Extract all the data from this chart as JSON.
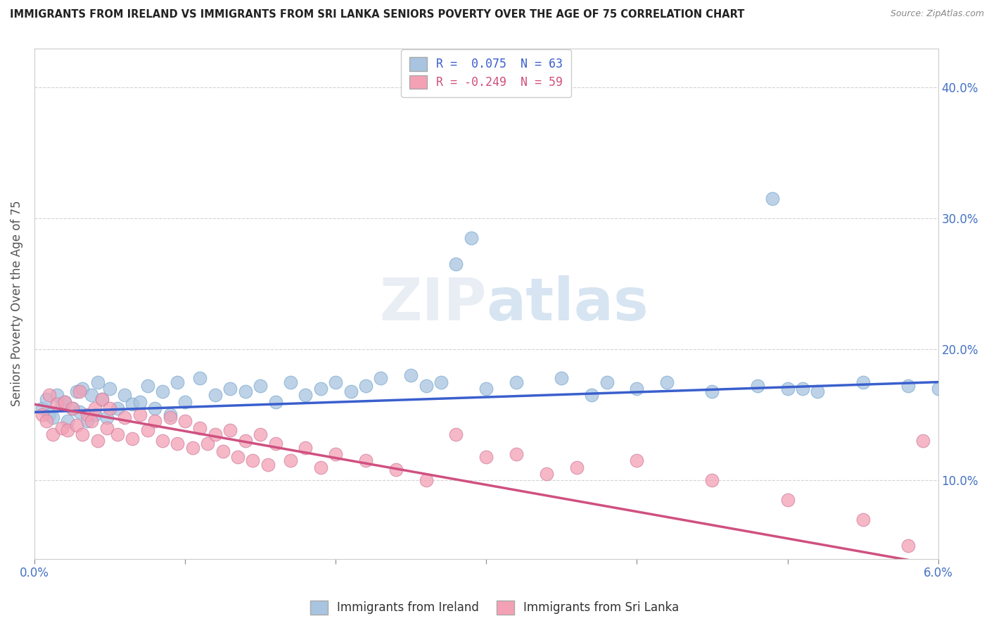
{
  "title": "IMMIGRANTS FROM IRELAND VS IMMIGRANTS FROM SRI LANKA SENIORS POVERTY OVER THE AGE OF 75 CORRELATION CHART",
  "source": "Source: ZipAtlas.com",
  "ylabel": "Seniors Poverty Over the Age of 75",
  "xlim": [
    0.0,
    6.0
  ],
  "ylim": [
    4.0,
    43.0
  ],
  "yticks": [
    10.0,
    20.0,
    30.0,
    40.0
  ],
  "ytick_labels": [
    "10.0%",
    "20.0%",
    "30.0%",
    "40.0%"
  ],
  "ireland_color": "#a8c4e0",
  "srilanka_color": "#f4a0b5",
  "ireland_line_color": "#3a5fcd",
  "srilanka_line_color": "#d05080",
  "background_color": "#ffffff",
  "ireland_scatter": [
    [
      0.05,
      15.5
    ],
    [
      0.08,
      16.2
    ],
    [
      0.1,
      15.0
    ],
    [
      0.12,
      14.8
    ],
    [
      0.15,
      16.5
    ],
    [
      0.18,
      15.8
    ],
    [
      0.2,
      16.0
    ],
    [
      0.22,
      14.5
    ],
    [
      0.25,
      15.5
    ],
    [
      0.28,
      16.8
    ],
    [
      0.3,
      15.2
    ],
    [
      0.32,
      17.0
    ],
    [
      0.35,
      14.5
    ],
    [
      0.38,
      16.5
    ],
    [
      0.4,
      15.0
    ],
    [
      0.42,
      17.5
    ],
    [
      0.45,
      16.2
    ],
    [
      0.48,
      14.8
    ],
    [
      0.5,
      17.0
    ],
    [
      0.55,
      15.5
    ],
    [
      0.6,
      16.5
    ],
    [
      0.65,
      15.8
    ],
    [
      0.7,
      16.0
    ],
    [
      0.75,
      17.2
    ],
    [
      0.8,
      15.5
    ],
    [
      0.85,
      16.8
    ],
    [
      0.9,
      15.0
    ],
    [
      0.95,
      17.5
    ],
    [
      1.0,
      16.0
    ],
    [
      1.1,
      17.8
    ],
    [
      1.2,
      16.5
    ],
    [
      1.3,
      17.0
    ],
    [
      1.4,
      16.8
    ],
    [
      1.5,
      17.2
    ],
    [
      1.6,
      16.0
    ],
    [
      1.7,
      17.5
    ],
    [
      1.8,
      16.5
    ],
    [
      1.9,
      17.0
    ],
    [
      2.0,
      17.5
    ],
    [
      2.1,
      16.8
    ],
    [
      2.2,
      17.2
    ],
    [
      2.5,
      18.0
    ],
    [
      2.7,
      17.5
    ],
    [
      2.8,
      26.5
    ],
    [
      2.9,
      28.5
    ],
    [
      3.0,
      17.0
    ],
    [
      3.2,
      17.5
    ],
    [
      3.5,
      17.8
    ],
    [
      3.7,
      16.5
    ],
    [
      4.0,
      17.0
    ],
    [
      4.2,
      17.5
    ],
    [
      4.5,
      16.8
    ],
    [
      4.8,
      17.2
    ],
    [
      4.9,
      31.5
    ],
    [
      5.0,
      17.0
    ],
    [
      5.2,
      16.8
    ],
    [
      5.5,
      17.5
    ],
    [
      5.8,
      17.2
    ],
    [
      6.0,
      17.0
    ],
    [
      2.3,
      17.8
    ],
    [
      2.6,
      17.2
    ],
    [
      3.8,
      17.5
    ],
    [
      5.1,
      17.0
    ]
  ],
  "srilanka_scatter": [
    [
      0.05,
      15.0
    ],
    [
      0.08,
      14.5
    ],
    [
      0.1,
      16.5
    ],
    [
      0.12,
      13.5
    ],
    [
      0.15,
      15.8
    ],
    [
      0.18,
      14.0
    ],
    [
      0.2,
      16.0
    ],
    [
      0.22,
      13.8
    ],
    [
      0.25,
      15.5
    ],
    [
      0.28,
      14.2
    ],
    [
      0.3,
      16.8
    ],
    [
      0.32,
      13.5
    ],
    [
      0.35,
      15.0
    ],
    [
      0.38,
      14.5
    ],
    [
      0.4,
      15.5
    ],
    [
      0.42,
      13.0
    ],
    [
      0.45,
      16.2
    ],
    [
      0.48,
      14.0
    ],
    [
      0.5,
      15.5
    ],
    [
      0.55,
      13.5
    ],
    [
      0.6,
      14.8
    ],
    [
      0.65,
      13.2
    ],
    [
      0.7,
      15.0
    ],
    [
      0.75,
      13.8
    ],
    [
      0.8,
      14.5
    ],
    [
      0.85,
      13.0
    ],
    [
      0.9,
      14.8
    ],
    [
      0.95,
      12.8
    ],
    [
      1.0,
      14.5
    ],
    [
      1.05,
      12.5
    ],
    [
      1.1,
      14.0
    ],
    [
      1.15,
      12.8
    ],
    [
      1.2,
      13.5
    ],
    [
      1.25,
      12.2
    ],
    [
      1.3,
      13.8
    ],
    [
      1.35,
      11.8
    ],
    [
      1.4,
      13.0
    ],
    [
      1.45,
      11.5
    ],
    [
      1.5,
      13.5
    ],
    [
      1.55,
      11.2
    ],
    [
      1.6,
      12.8
    ],
    [
      1.7,
      11.5
    ],
    [
      1.8,
      12.5
    ],
    [
      1.9,
      11.0
    ],
    [
      2.0,
      12.0
    ],
    [
      2.2,
      11.5
    ],
    [
      2.4,
      10.8
    ],
    [
      2.6,
      10.0
    ],
    [
      2.8,
      13.5
    ],
    [
      3.0,
      11.8
    ],
    [
      3.2,
      12.0
    ],
    [
      3.4,
      10.5
    ],
    [
      3.6,
      11.0
    ],
    [
      4.0,
      11.5
    ],
    [
      4.5,
      10.0
    ],
    [
      5.0,
      8.5
    ],
    [
      5.5,
      7.0
    ],
    [
      5.8,
      5.0
    ],
    [
      5.9,
      13.0
    ]
  ],
  "ireland_trend": [
    0.0,
    6.0,
    15.2,
    17.5
  ],
  "srilanka_trend": [
    0.0,
    6.0,
    15.8,
    3.5
  ]
}
